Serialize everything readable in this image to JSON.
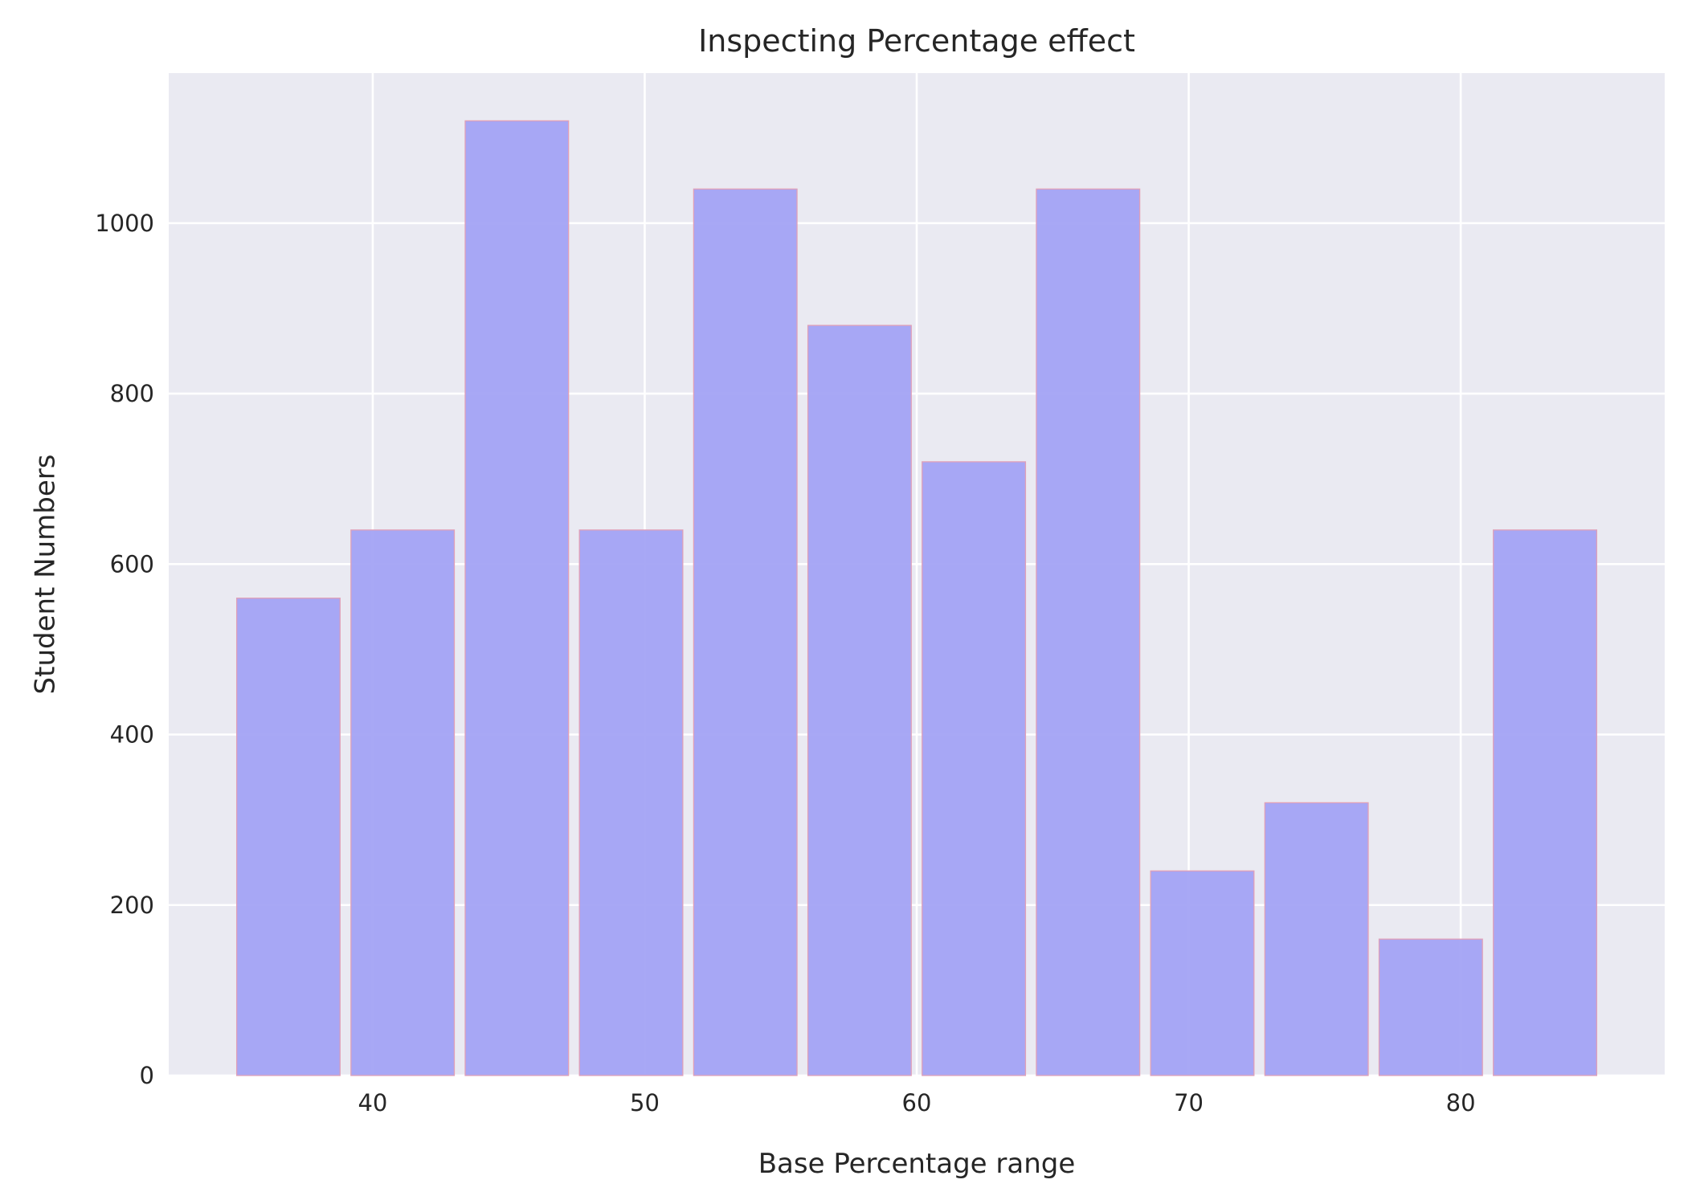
{
  "chart_data": {
    "type": "bar",
    "title": "Inspecting Percentage effect",
    "xlabel": "Base Percentage range",
    "ylabel": "Student Numbers",
    "bins": [
      {
        "start": 35.0,
        "end": 38.8,
        "value": 560
      },
      {
        "start": 39.2,
        "end": 43.0,
        "value": 640
      },
      {
        "start": 43.4,
        "end": 47.2,
        "value": 1120
      },
      {
        "start": 47.6,
        "end": 51.4,
        "value": 640
      },
      {
        "start": 51.8,
        "end": 55.6,
        "value": 1040
      },
      {
        "start": 56.0,
        "end": 59.8,
        "value": 880
      },
      {
        "start": 60.2,
        "end": 64.0,
        "value": 720
      },
      {
        "start": 64.4,
        "end": 68.2,
        "value": 1040
      },
      {
        "start": 68.6,
        "end": 72.4,
        "value": 240
      },
      {
        "start": 72.8,
        "end": 76.6,
        "value": 320
      },
      {
        "start": 77.0,
        "end": 80.8,
        "value": 160
      },
      {
        "start": 81.2,
        "end": 85.0,
        "value": 640
      }
    ],
    "xlim": [
      32.5,
      87.5
    ],
    "ylim": [
      0,
      1176
    ],
    "xticks": [
      40,
      50,
      60,
      70,
      80
    ],
    "yticks": [
      0,
      200,
      400,
      600,
      800,
      1000
    ],
    "grid": true,
    "colors": {
      "background": "#eaeaf2",
      "grid": "#ffffff",
      "bar_fill": "#a3a3f4",
      "bar_edge": "#e0a0b8",
      "text": "#262626"
    }
  }
}
